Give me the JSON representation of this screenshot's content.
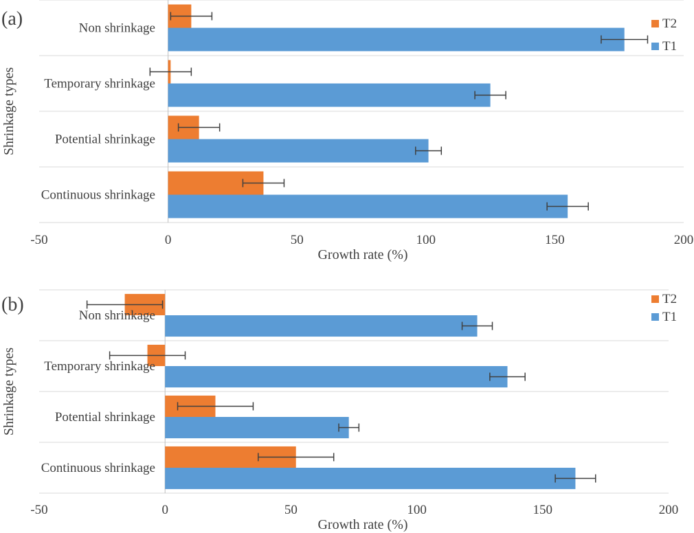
{
  "chart_data": [
    {
      "type": "bar",
      "orientation": "horizontal",
      "panel_label": "(a)",
      "categories": [
        "Non shrinkage",
        "Temporary shrinkage",
        "Potential shrinkage",
        "Continuous shrinkage"
      ],
      "series": [
        {
          "name": "T2",
          "color": "#ED7D31",
          "values": [
            9,
            1,
            12,
            37
          ],
          "errors": [
            8,
            8,
            8,
            8
          ]
        },
        {
          "name": "T1",
          "color": "#5B9BD5",
          "values": [
            177,
            125,
            101,
            155
          ],
          "errors": [
            9,
            6,
            5,
            8
          ]
        }
      ],
      "xlabel": "Growth rate (%)",
      "ylabel": "Shrinkage types",
      "xlim": [
        -50,
        200
      ],
      "xticks": [
        "-50",
        "0",
        "50",
        "100",
        "150",
        "200"
      ],
      "grid": true,
      "legend": [
        "T2",
        "T1"
      ],
      "legend_position": "top-right"
    },
    {
      "type": "bar",
      "orientation": "horizontal",
      "panel_label": "(b)",
      "categories": [
        "Non shrinkage",
        "Temporary shrinkage",
        "Potential shrinkage",
        "Continuous shrinkage"
      ],
      "series": [
        {
          "name": "T2",
          "color": "#ED7D31",
          "values": [
            -16,
            -7,
            20,
            52
          ],
          "errors": [
            15,
            15,
            15,
            15
          ]
        },
        {
          "name": "T1",
          "color": "#5B9BD5",
          "values": [
            124,
            136,
            73,
            163
          ],
          "errors": [
            6,
            7,
            4,
            8
          ]
        }
      ],
      "xlabel": "Growth rate (%)",
      "ylabel": "Shrinkage types",
      "xlim": [
        -50,
        200
      ],
      "xticks": [
        "-50",
        "0",
        "50",
        "100",
        "150",
        "200"
      ],
      "grid": true,
      "legend": [
        "T2",
        "T1"
      ],
      "legend_position": "top-right"
    }
  ]
}
